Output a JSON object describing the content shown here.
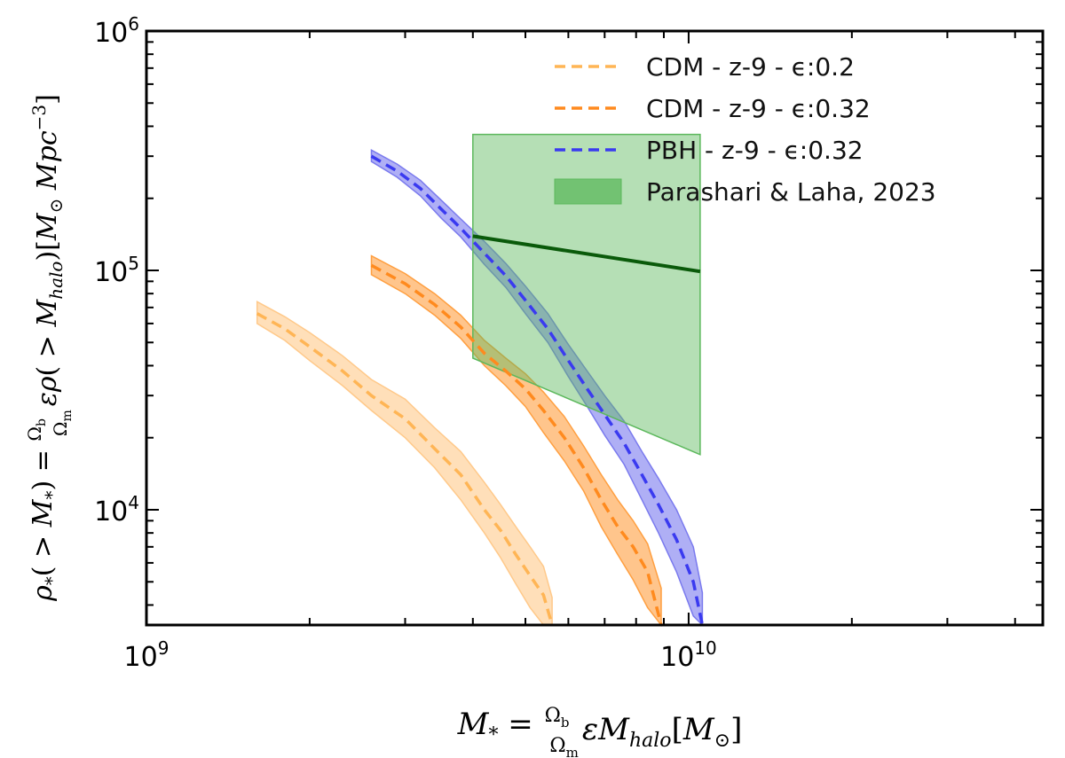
{
  "chart_data": {
    "type": "line",
    "title": "",
    "xlabel": "M* = (Ωb/Ωm) ε M_halo [M⊙]",
    "ylabel": "ρ*(>M*) = (Ωb/Ωm) ε ρ(>M_halo) [M⊙ Mpc^-3]",
    "x_scale": "log",
    "y_scale": "log",
    "xlim": [
      1000000000,
      45000000000
    ],
    "ylim": [
      3300,
      1000000
    ],
    "x_ticks": [
      {
        "value": 1000000000,
        "base": "10",
        "exp": "9"
      },
      {
        "value": 10000000000,
        "base": "10",
        "exp": "10"
      }
    ],
    "y_ticks": [
      {
        "value": 10000,
        "base": "10",
        "exp": "4"
      },
      {
        "value": 100000,
        "base": "10",
        "exp": "5"
      },
      {
        "value": 1000000,
        "base": "10",
        "exp": "6"
      }
    ],
    "grid": false,
    "legend_position": "top-right",
    "series": [
      {
        "name": "CDM - z-9 - ϵ:0.2",
        "style": "dashed",
        "color": "#ffb555",
        "band_color": "#ffc98a",
        "x": [
          1600000000.0,
          1800000000.0,
          2000000000.0,
          2300000000.0,
          2600000000.0,
          3000000000.0,
          3400000000.0,
          3800000000.0,
          4200000000.0,
          4500000000.0,
          4800000000.0,
          5100000000.0,
          5400000000.0,
          5600000000.0
        ],
        "y": [
          66000,
          57000,
          48000,
          38000,
          30000,
          24000,
          18000,
          14000,
          10000,
          8200,
          6500,
          5300,
          4400,
          3300
        ],
        "y_low": [
          60000,
          51000,
          42000,
          33000,
          26000,
          20000,
          15000,
          11000,
          8000,
          6300,
          4900,
          3900,
          3300,
          3300
        ],
        "y_high": [
          74000,
          64000,
          55000,
          44000,
          35000,
          29000,
          22000,
          17500,
          13000,
          10500,
          8500,
          7000,
          5800,
          4300
        ]
      },
      {
        "name": "CDM - z-9 - ϵ:0.32",
        "style": "dashed",
        "color": "#ff8a1e",
        "band_color": "#ff9f40",
        "x": [
          2600000000.0,
          3000000000.0,
          3400000000.0,
          3800000000.0,
          4200000000.0,
          4600000000.0,
          5000000000.0,
          5400000000.0,
          5900000000.0,
          6400000000.0,
          6900000000.0,
          7400000000.0,
          7900000000.0,
          8400000000.0,
          8900000000.0
        ],
        "y": [
          105000,
          88000,
          72000,
          58000,
          45000,
          38000,
          32000,
          26000,
          20000,
          15000,
          11000,
          8500,
          7000,
          5500,
          3300
        ],
        "y_low": [
          96000,
          80000,
          65000,
          52000,
          40000,
          33000,
          27000,
          21000,
          16000,
          12000,
          8500,
          6500,
          5100,
          3900,
          3300
        ],
        "y_high": [
          115000,
          97000,
          80000,
          65000,
          51000,
          43000,
          37000,
          31000,
          24500,
          18500,
          14000,
          11000,
          9000,
          7200,
          4700
        ]
      },
      {
        "name": "PBH - z-9 - ϵ:0.32",
        "style": "dashed",
        "color": "#3a3af0",
        "band_color": "#7a7aee",
        "x": [
          2600000000.0,
          2900000000.0,
          3200000000.0,
          3500000000.0,
          3800000000.0,
          4200000000.0,
          4600000000.0,
          5000000000.0,
          5500000000.0,
          6000000000.0,
          6500000000.0,
          7000000000.0,
          7600000000.0,
          8200000000.0,
          8800000000.0,
          9500000000.0,
          10200000000.0,
          10600000000.0
        ],
        "y": [
          300000,
          260000,
          220000,
          180000,
          150000,
          118000,
          95000,
          75000,
          57000,
          42000,
          32000,
          25000,
          19000,
          14000,
          10500,
          7500,
          5000,
          3300
        ],
        "y_low": [
          285000,
          245000,
          205000,
          165000,
          138000,
          106000,
          85000,
          66000,
          50000,
          36000,
          27000,
          20500,
          15500,
          11000,
          8000,
          5500,
          3600,
          3300
        ],
        "y_high": [
          318000,
          278000,
          238000,
          196000,
          164000,
          132000,
          107000,
          86000,
          66000,
          49000,
          38000,
          30000,
          23500,
          17500,
          13500,
          10000,
          7000,
          4500
        ]
      }
    ],
    "observational_band": {
      "name": "Parashari & Laha, 2023",
      "fill": "#5cb85c",
      "fill_opacity": 0.45,
      "line_color": "#0a5a0a",
      "x": [
        4000000000.0,
        10500000000.0
      ],
      "y_low": [
        43000,
        17000
      ],
      "y_high": [
        370000,
        370000
      ],
      "y_center": [
        139000,
        99000
      ]
    }
  }
}
